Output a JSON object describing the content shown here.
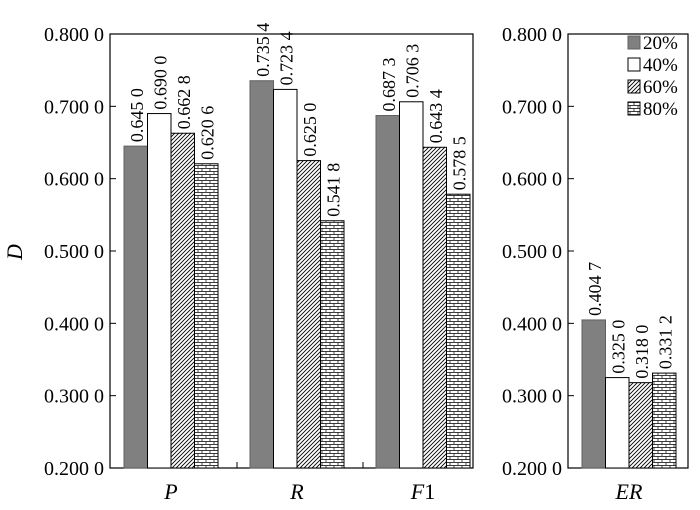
{
  "chart_data": {
    "type": "bar",
    "ylabel": "D",
    "ylim": [
      0.2,
      0.8
    ],
    "yticks": [
      "0.200 0",
      "0.300 0",
      "0.400 0",
      "0.500 0",
      "0.600 0",
      "0.700 0",
      "0.800 0"
    ],
    "legend_position": "top-right",
    "series": [
      {
        "name": "20%",
        "pattern": "solid",
        "color": "#808080"
      },
      {
        "name": "40%",
        "pattern": "blank",
        "color": "#ffffff"
      },
      {
        "name": "60%",
        "pattern": "diagonal-hatch",
        "color": "#000000"
      },
      {
        "name": "80%",
        "pattern": "brick",
        "color": "#000000"
      }
    ],
    "panels": [
      {
        "categories": [
          "P",
          "R",
          "F1"
        ],
        "values": [
          [
            0.645,
            0.69,
            0.6628,
            0.6206
          ],
          [
            0.7354,
            0.7234,
            0.625,
            0.5418
          ],
          [
            0.6873,
            0.7063,
            0.6434,
            0.5785
          ]
        ],
        "labels": [
          [
            "0.645 0",
            "0.690 0",
            "0.662 8",
            "0.620 6"
          ],
          [
            "0.735 4",
            "0.723 4",
            "0.625 0",
            "0.541 8"
          ],
          [
            "0.687 3",
            "0.706 3",
            "0.643 4",
            "0.578 5"
          ]
        ]
      },
      {
        "categories": [
          "ER"
        ],
        "values": [
          [
            0.4047,
            0.325,
            0.318,
            0.3312
          ]
        ],
        "labels": [
          [
            "0.404 7",
            "0.325 0",
            "0.318 0",
            "0.331 2"
          ]
        ]
      }
    ]
  }
}
